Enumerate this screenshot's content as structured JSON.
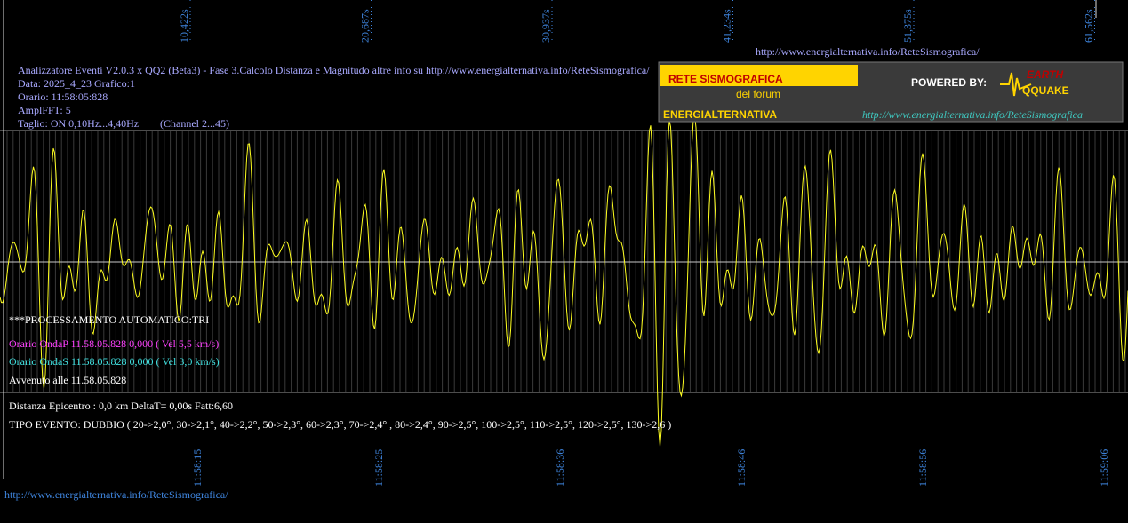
{
  "top_ticks": [
    "10,422s",
    "20,687s",
    "30,937s",
    "41,234s",
    "51,375s",
    "61,562s"
  ],
  "top_url": "http://www.energialternativa.info/ReteSismografica/",
  "header": {
    "title": "Analizzatore Eventi V2.0.3 x QQ2 (Beta3) - Fase 3.Calcolo Distanza e Magnitudo altre info su http://www.energialternativa.info/ReteSismografica/",
    "date": "Data: 2025_4_23 Grafico:1",
    "time": "Orario: 11:58:05:828",
    "ampl": "AmplFFT: 5",
    "cut": "Taglio: ON 0,10Hz...4,40Hz",
    "channel": "(Channel 2...45)"
  },
  "logo": {
    "title": "RETE SISMOGRAFICA",
    "sub": "del forum",
    "name": "ENERGIALTERNATIVA",
    "powered": "POWERED BY:",
    "brand1": "EARTH",
    "brand2": "QQUAKE",
    "url": "http://www.energialternativa.info/ReteSismografica"
  },
  "results": {
    "processing": "***PROCESSAMENTO AUTOMATICO:TRI",
    "wave_p": "Orario OndaP 11.58.05.828  0,000 ( Vel 5,5 km/s)",
    "wave_s": "Orario OndaS 11.58.05.828  0,000 ( Vel 3,0 km/s)",
    "occurred": "Avvenuto alle 11.58.05.828",
    "distance": "Distanza Epicentro : 0,0 km DeltaT= 0,00s  Fatt:6,60",
    "type": "TIPO EVENTO: DUBBIO ( 20->2,0°, 30->2,1°, 40->2,2°, 50->2,3°, 60->2,3°, 70->2,4° , 80->2,4°, 90->2,5°, 100->2,5°, 110->2,5°, 120->2,5°, 130->2,6 )"
  },
  "bottom_ticks": [
    "11:58:15",
    "11:58:25",
    "11:58:36",
    "11:58:46",
    "11:58:56",
    "11:59:06"
  ],
  "bottom_url": "http://www.energialternativa.info/ReteSismografica/"
}
